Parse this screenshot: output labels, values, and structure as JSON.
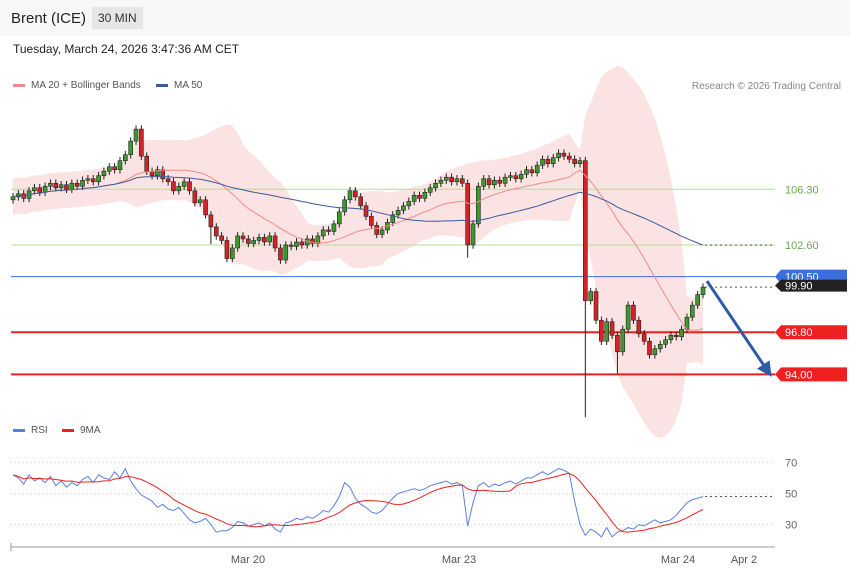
{
  "header": {
    "title": "Brent (ICE)",
    "timeframe": "30 MIN"
  },
  "timestamp": "Tuesday, March 24, 2026 3:47:36 AM CET",
  "legend": {
    "bb_label": "MA 20 + Bollinger Bands",
    "ma50_label": "MA 50",
    "rsi_label": "RSI",
    "rsi_ma_label": "9MA",
    "credit": "Research © 2026 Trading Central"
  },
  "colors": {
    "bullish": "#3c9a2c",
    "bearish": "#d22424",
    "bollinger": "#fbdada",
    "ma20": "#f08a8a",
    "ma50": "#3a5c99",
    "resistance": "#b7dc9a",
    "support": "#ee2020",
    "current": "#3b6fe0",
    "rsi": "#5b7fe0",
    "rsi_ma": "#ee2020",
    "arrow": "#2f5aa8"
  },
  "chart_data": [
    {
      "type": "candlestick",
      "title": "Brent (ICE) 30 MIN",
      "x_ticks": [
        "Mar 20",
        "Mar 23",
        "Mar 24",
        "Apr 2"
      ],
      "price_levels": [
        {
          "label": "106.30",
          "value": 106.3,
          "kind": "resistance"
        },
        {
          "label": "102.60",
          "value": 102.6,
          "kind": "resistance"
        },
        {
          "label": "100.50",
          "value": 100.5,
          "kind": "current"
        },
        {
          "label": "99.90",
          "value": 99.9,
          "kind": "last"
        },
        {
          "label": "96.80",
          "value": 96.8,
          "kind": "support"
        },
        {
          "label": "94.00",
          "value": 94.0,
          "kind": "support"
        }
      ],
      "y_range": [
        91.5,
        112.3
      ],
      "series": [
        {
          "name": "MA 20 + Bollinger Bands"
        },
        {
          "name": "MA 50"
        }
      ],
      "forecast": {
        "from": 100.2,
        "to": 94.0
      },
      "closes": [
        105.8,
        106.0,
        105.7,
        106.2,
        106.4,
        106.1,
        106.5,
        106.7,
        106.4,
        106.6,
        106.3,
        106.7,
        106.5,
        106.9,
        107.0,
        106.8,
        107.2,
        107.5,
        107.8,
        107.6,
        108.2,
        108.6,
        109.5,
        110.3,
        108.5,
        107.5,
        107.2,
        107.6,
        107.0,
        106.8,
        106.2,
        106.5,
        106.8,
        106.2,
        105.4,
        105.6,
        104.6,
        103.8,
        103.2,
        102.9,
        101.7,
        102.4,
        103.2,
        103.0,
        102.7,
        102.9,
        103.1,
        102.8,
        103.2,
        102.4,
        101.6,
        102.6,
        102.5,
        102.8,
        102.6,
        103.0,
        102.7,
        103.2,
        103.6,
        103.5,
        104.0,
        104.8,
        105.6,
        106.2,
        105.8,
        105.2,
        104.5,
        103.9,
        103.3,
        103.6,
        104.1,
        104.6,
        104.9,
        105.2,
        105.5,
        105.9,
        105.7,
        106.1,
        106.4,
        106.7,
        106.9,
        107.1,
        106.8,
        107.0,
        106.7,
        102.6,
        104.0,
        106.5,
        107.0,
        106.6,
        106.9,
        106.7,
        107.1,
        107.2,
        107.0,
        107.3,
        107.6,
        107.4,
        107.9,
        108.3,
        108.0,
        108.4,
        108.7,
        108.5,
        108.3,
        108.0,
        108.2,
        98.9,
        99.5,
        97.6,
        96.2,
        97.5,
        96.6,
        95.5,
        97.0,
        98.6,
        97.6,
        96.7,
        96.2,
        95.3,
        95.7,
        96.0,
        96.3,
        96.6,
        96.5,
        97.0,
        97.8,
        98.6,
        99.3,
        99.8
      ],
      "rsi_ticks": [
        "70",
        "50",
        "30"
      ],
      "rsi": [
        62,
        60,
        56,
        62,
        58,
        60,
        57,
        61,
        55,
        58,
        54,
        57,
        55,
        59,
        61,
        57,
        62,
        60,
        59,
        64,
        60,
        66,
        58,
        53,
        49,
        47,
        45,
        41,
        43,
        40,
        39,
        41,
        37,
        33,
        31,
        32,
        34,
        30,
        25,
        26,
        26,
        28,
        32,
        31,
        29,
        30,
        31,
        29,
        31,
        27,
        25,
        31,
        32,
        34,
        33,
        35,
        34,
        36,
        39,
        38,
        42,
        48,
        57,
        54,
        47,
        43,
        41,
        38,
        37,
        39,
        43,
        47,
        50,
        51,
        52,
        53,
        52,
        53,
        55,
        56,
        57,
        58,
        56,
        57,
        55,
        29,
        44,
        55,
        57,
        54,
        56,
        55,
        57,
        58,
        56,
        58,
        60,
        60,
        62,
        64,
        62,
        64,
        66,
        65,
        63,
        45,
        30,
        23,
        27,
        25,
        22,
        28,
        22,
        25,
        26,
        28,
        27,
        30,
        29,
        31,
        33,
        31,
        32,
        33,
        36,
        40,
        44,
        46,
        47,
        48
      ]
    }
  ]
}
